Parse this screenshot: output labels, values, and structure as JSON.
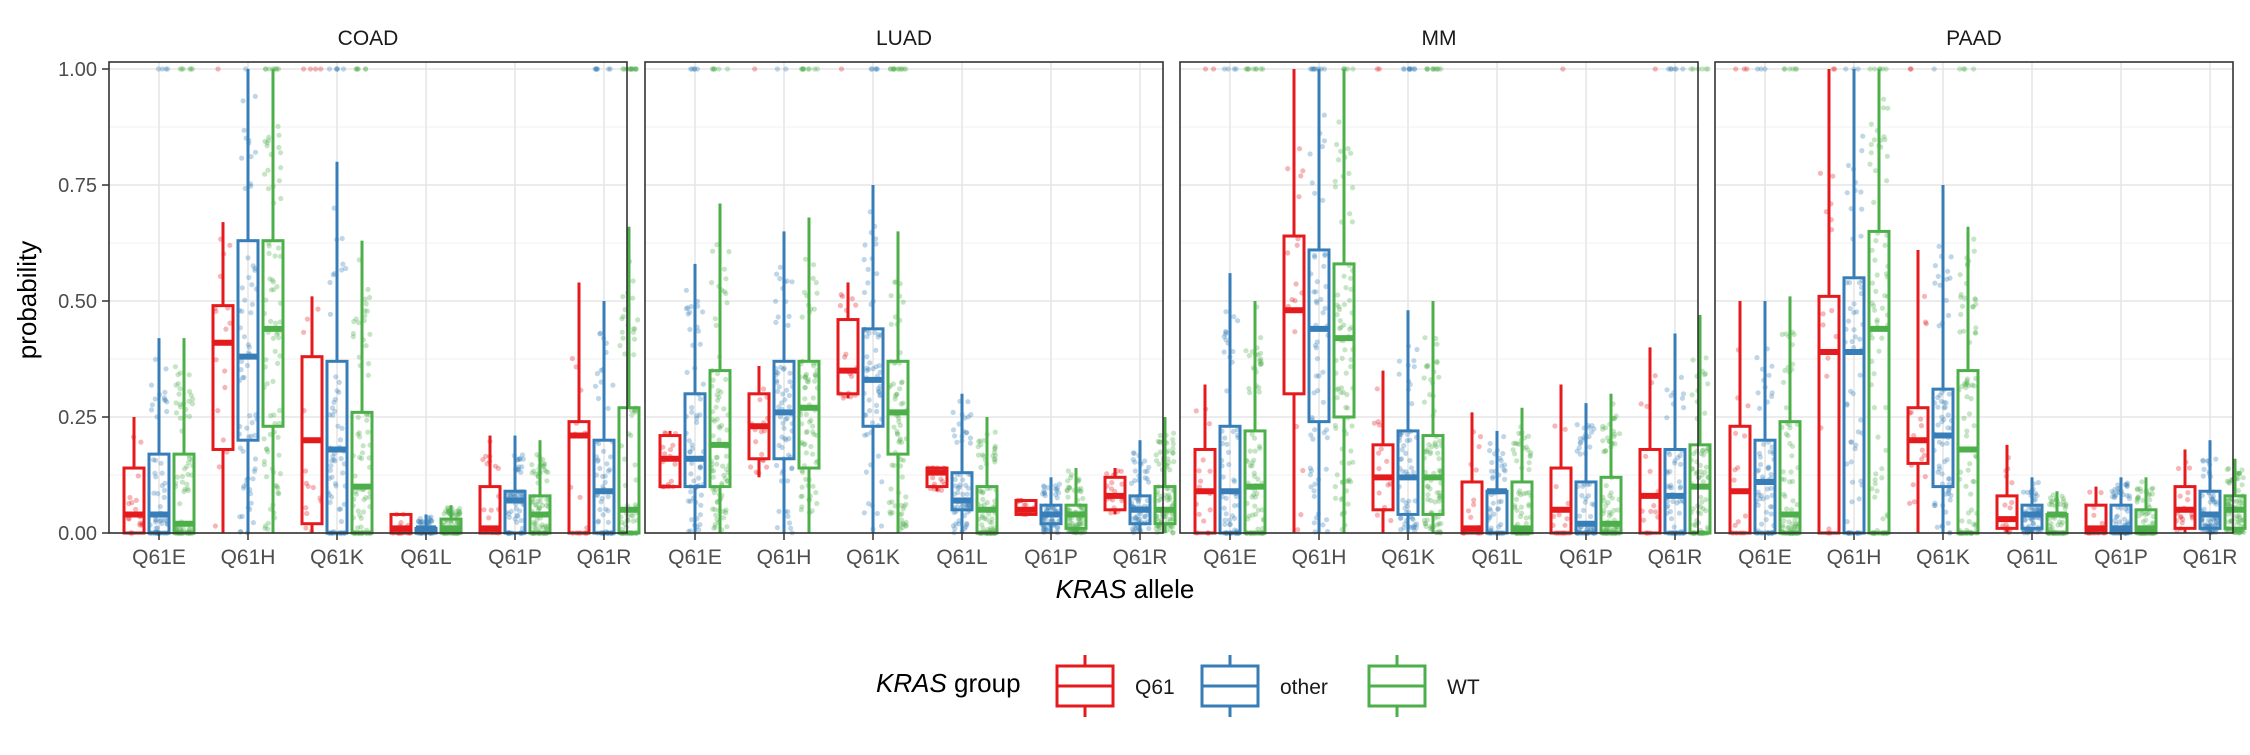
{
  "chart_data": {
    "type": "boxplot",
    "facets": [
      "COAD",
      "LUAD",
      "MM",
      "PAAD"
    ],
    "categories": [
      "Q61E",
      "Q61H",
      "Q61K",
      "Q61L",
      "Q61P",
      "Q61R"
    ],
    "groups": [
      {
        "name": "Q61",
        "color": "#e41a1c"
      },
      {
        "name": "other",
        "color": "#377eb8"
      },
      {
        "name": "WT",
        "color": "#4daf4a"
      }
    ],
    "ylabel": "probability",
    "xlabel_italic": "KRAS",
    "xlabel_rest": " allele",
    "legend_title_italic": "KRAS",
    "legend_title_rest": " group",
    "legend_position": "bottom",
    "ylim": [
      0,
      1
    ],
    "yticks": [
      "0.00",
      "0.25",
      "0.50",
      "0.75",
      "1.00"
    ],
    "ytick_values": [
      0,
      0.25,
      0.5,
      0.75,
      1.0
    ],
    "grid": true,
    "boxes": {
      "COAD": {
        "Q61E": [
          [
            0.0,
            0.0,
            0.04,
            0.14,
            0.25
          ],
          [
            0.0,
            0.0,
            0.04,
            0.17,
            0.42
          ],
          [
            0.0,
            0.0,
            0.02,
            0.17,
            0.42
          ]
        ],
        "Q61H": [
          [
            0.0,
            0.18,
            0.41,
            0.49,
            0.67
          ],
          [
            0.0,
            0.2,
            0.38,
            0.63,
            1.0
          ],
          [
            0.0,
            0.23,
            0.44,
            0.63,
            1.0
          ]
        ],
        "Q61K": [
          [
            0.0,
            0.02,
            0.2,
            0.38,
            0.51
          ],
          [
            0.0,
            0.0,
            0.18,
            0.37,
            0.8
          ],
          [
            0.0,
            0.0,
            0.1,
            0.26,
            0.63
          ]
        ],
        "Q61L": [
          [
            0.0,
            0.0,
            0.01,
            0.04,
            0.04
          ],
          [
            0.0,
            0.0,
            0.01,
            0.01,
            0.04
          ],
          [
            0.0,
            0.0,
            0.01,
            0.03,
            0.06
          ]
        ],
        "Q61P": [
          [
            0.0,
            0.0,
            0.01,
            0.1,
            0.21
          ],
          [
            0.0,
            0.0,
            0.07,
            0.09,
            0.21
          ],
          [
            0.0,
            0.0,
            0.04,
            0.08,
            0.2
          ]
        ],
        "Q61R": [
          [
            0.0,
            0.0,
            0.21,
            0.24,
            0.54
          ],
          [
            0.0,
            0.0,
            0.09,
            0.2,
            0.5
          ],
          [
            0.0,
            0.0,
            0.05,
            0.27,
            0.66
          ]
        ]
      },
      "LUAD": {
        "Q61E": [
          [
            0.1,
            0.1,
            0.16,
            0.21,
            0.22
          ],
          [
            0.0,
            0.1,
            0.16,
            0.3,
            0.58
          ],
          [
            0.0,
            0.1,
            0.19,
            0.35,
            0.71
          ]
        ],
        "Q61H": [
          [
            0.12,
            0.16,
            0.23,
            0.3,
            0.36
          ],
          [
            0.0,
            0.16,
            0.26,
            0.37,
            0.65
          ],
          [
            0.0,
            0.14,
            0.27,
            0.37,
            0.68
          ]
        ],
        "Q61K": [
          [
            0.29,
            0.3,
            0.35,
            0.46,
            0.54
          ],
          [
            0.0,
            0.23,
            0.33,
            0.44,
            0.75
          ],
          [
            0.0,
            0.17,
            0.26,
            0.37,
            0.65
          ]
        ],
        "Q61L": [
          [
            0.09,
            0.1,
            0.13,
            0.14,
            0.14
          ],
          [
            0.0,
            0.05,
            0.07,
            0.13,
            0.3
          ],
          [
            0.0,
            0.0,
            0.05,
            0.1,
            0.25
          ]
        ],
        "Q61P": [
          [
            0.04,
            0.04,
            0.05,
            0.07,
            0.07
          ],
          [
            0.0,
            0.02,
            0.04,
            0.06,
            0.12
          ],
          [
            0.0,
            0.01,
            0.04,
            0.06,
            0.14
          ]
        ],
        "Q61R": [
          [
            0.04,
            0.05,
            0.08,
            0.12,
            0.14
          ],
          [
            0.0,
            0.02,
            0.05,
            0.08,
            0.2
          ],
          [
            0.0,
            0.02,
            0.05,
            0.1,
            0.25
          ]
        ]
      },
      "MM": {
        "Q61E": [
          [
            0.0,
            0.0,
            0.09,
            0.18,
            0.32
          ],
          [
            0.0,
            0.0,
            0.09,
            0.23,
            0.56
          ],
          [
            0.0,
            0.0,
            0.1,
            0.22,
            0.5
          ]
        ],
        "Q61H": [
          [
            0.0,
            0.3,
            0.48,
            0.64,
            1.0
          ],
          [
            0.0,
            0.24,
            0.44,
            0.61,
            1.0
          ],
          [
            0.0,
            0.25,
            0.42,
            0.58,
            1.0
          ]
        ],
        "Q61K": [
          [
            0.0,
            0.05,
            0.12,
            0.19,
            0.35
          ],
          [
            0.0,
            0.04,
            0.12,
            0.22,
            0.48
          ],
          [
            0.0,
            0.04,
            0.12,
            0.21,
            0.5
          ]
        ],
        "Q61L": [
          [
            0.0,
            0.0,
            0.01,
            0.11,
            0.26
          ],
          [
            0.0,
            0.0,
            0.09,
            0.09,
            0.22
          ],
          [
            0.0,
            0.0,
            0.01,
            0.11,
            0.27
          ]
        ],
        "Q61P": [
          [
            0.0,
            0.0,
            0.05,
            0.14,
            0.32
          ],
          [
            0.0,
            0.0,
            0.02,
            0.11,
            0.28
          ],
          [
            0.0,
            0.0,
            0.02,
            0.12,
            0.3
          ]
        ],
        "Q61R": [
          [
            0.0,
            0.0,
            0.08,
            0.18,
            0.4
          ],
          [
            0.0,
            0.0,
            0.08,
            0.18,
            0.43
          ],
          [
            0.0,
            0.0,
            0.1,
            0.19,
            0.47
          ]
        ]
      },
      "PAAD": {
        "Q61E": [
          [
            0.0,
            0.0,
            0.09,
            0.23,
            0.5
          ],
          [
            0.0,
            0.0,
            0.11,
            0.2,
            0.5
          ],
          [
            0.0,
            0.0,
            0.04,
            0.24,
            0.51
          ]
        ],
        "Q61H": [
          [
            0.0,
            0.0,
            0.39,
            0.51,
            1.0
          ],
          [
            0.0,
            0.0,
            0.39,
            0.55,
            1.0
          ],
          [
            0.0,
            0.0,
            0.44,
            0.65,
            1.0
          ]
        ],
        "Q61K": [
          [
            0.0,
            0.15,
            0.2,
            0.27,
            0.61
          ],
          [
            0.0,
            0.1,
            0.21,
            0.31,
            0.75
          ],
          [
            0.0,
            0.0,
            0.18,
            0.35,
            0.66
          ]
        ],
        "Q61L": [
          [
            0.0,
            0.01,
            0.03,
            0.08,
            0.19
          ],
          [
            0.0,
            0.01,
            0.04,
            0.06,
            0.12
          ],
          [
            0.0,
            0.0,
            0.04,
            0.04,
            0.09
          ]
        ],
        "Q61P": [
          [
            0.0,
            0.0,
            0.01,
            0.06,
            0.1
          ],
          [
            0.0,
            0.0,
            0.01,
            0.06,
            0.12
          ],
          [
            0.0,
            0.0,
            0.01,
            0.05,
            0.12
          ]
        ],
        "Q61R": [
          [
            0.0,
            0.01,
            0.05,
            0.1,
            0.18
          ],
          [
            0.0,
            0.01,
            0.04,
            0.09,
            0.2
          ],
          [
            0.0,
            0.01,
            0.05,
            0.08,
            0.16
          ]
        ]
      }
    }
  }
}
